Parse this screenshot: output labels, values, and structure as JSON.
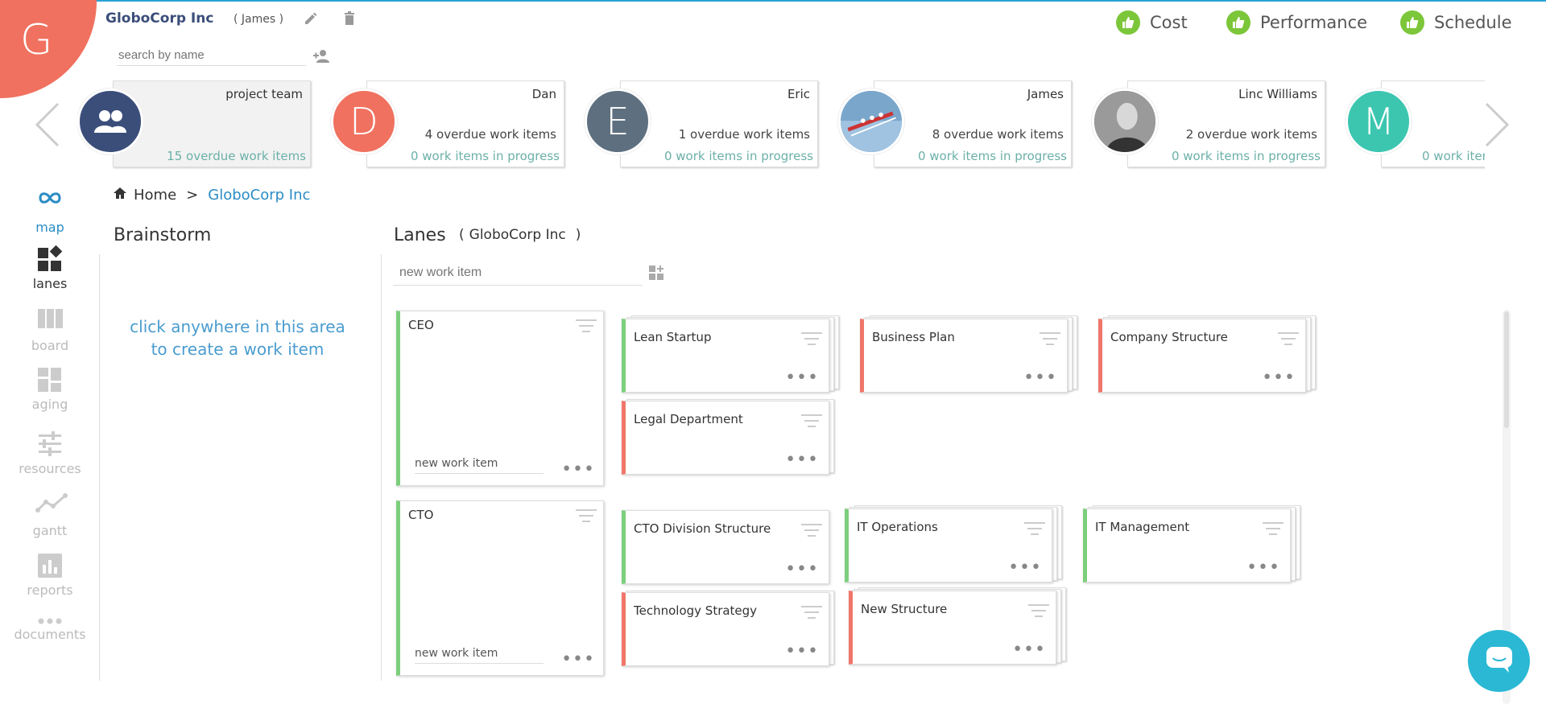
{
  "header": {
    "logo_letter": "G",
    "org_name": "GloboCorp Inc",
    "org_owner": "( James )",
    "search_placeholder": "search by name"
  },
  "status_indicators": [
    {
      "label": "Cost",
      "icon": "thumbs-up-icon",
      "color": "#7cc63a"
    },
    {
      "label": "Performance",
      "icon": "thumbs-up-icon",
      "color": "#7cc63a"
    },
    {
      "label": "Schedule",
      "icon": "thumbs-up-icon",
      "color": "#7cc63a"
    }
  ],
  "people": [
    {
      "name": "project team",
      "avatar": "group-icon",
      "avatar_color": "#3b4e7a",
      "overdue": "",
      "in_progress": "15 overdue work items"
    },
    {
      "name": "Dan",
      "avatar_letter": "D",
      "avatar_color": "#f0715f",
      "overdue": "4 overdue work items",
      "in_progress": "0 work items in progress"
    },
    {
      "name": "Eric",
      "avatar_letter": "E",
      "avatar_color": "#5e7080",
      "overdue": "1 overdue work items",
      "in_progress": "0 work items in progress"
    },
    {
      "name": "James",
      "avatar": "rowing-photo",
      "overdue": "8 overdue work items",
      "in_progress": "0 work items in progress"
    },
    {
      "name": "Linc Williams",
      "avatar": "portrait-photo",
      "overdue": "2 overdue work items",
      "in_progress": "0 work items in progress"
    },
    {
      "name": "",
      "avatar_letter": "M",
      "avatar_color": "#3cc6b0",
      "overdue": "",
      "in_progress": "0 work iter"
    }
  ],
  "sidebar": {
    "items": [
      {
        "label": "map",
        "icon": "infinity-icon"
      },
      {
        "label": "lanes",
        "icon": "lanes-icon"
      },
      {
        "label": "board",
        "icon": "board-icon"
      },
      {
        "label": "aging",
        "icon": "aging-icon"
      },
      {
        "label": "resources",
        "icon": "sliders-icon"
      },
      {
        "label": "gantt",
        "icon": "trend-line-icon"
      },
      {
        "label": "reports",
        "icon": "bar-chart-icon"
      },
      {
        "label": "documents",
        "icon": "dots-icon"
      }
    ]
  },
  "breadcrumb": {
    "home": "Home",
    "separator": ">",
    "current": "GloboCorp Inc"
  },
  "brainstorm": {
    "title": "Brainstorm",
    "hint_line1": "click anywhere in this area",
    "hint_line2": "to create a work item"
  },
  "lanes": {
    "title": "Lanes",
    "context_open": "(",
    "context": "GloboCorp Inc",
    "context_close": ")",
    "new_item_placeholder": "new work item",
    "rows": [
      {
        "lane": "CEO",
        "new_item": "new work item",
        "items": [
          {
            "title": "Lean Startup",
            "status": "green"
          },
          {
            "title": "Business Plan",
            "status": "red"
          },
          {
            "title": "Company Structure",
            "status": "red"
          },
          {
            "title": "Legal Department",
            "status": "red"
          }
        ]
      },
      {
        "lane": "CTO",
        "new_item": "new work item",
        "items": [
          {
            "title": "CTO Division Structure",
            "status": "green"
          },
          {
            "title": "IT Operations",
            "status": "green"
          },
          {
            "title": "IT Management",
            "status": "green"
          },
          {
            "title": "Technology Strategy",
            "status": "red"
          },
          {
            "title": "New Structure",
            "status": "red"
          }
        ]
      }
    ]
  }
}
